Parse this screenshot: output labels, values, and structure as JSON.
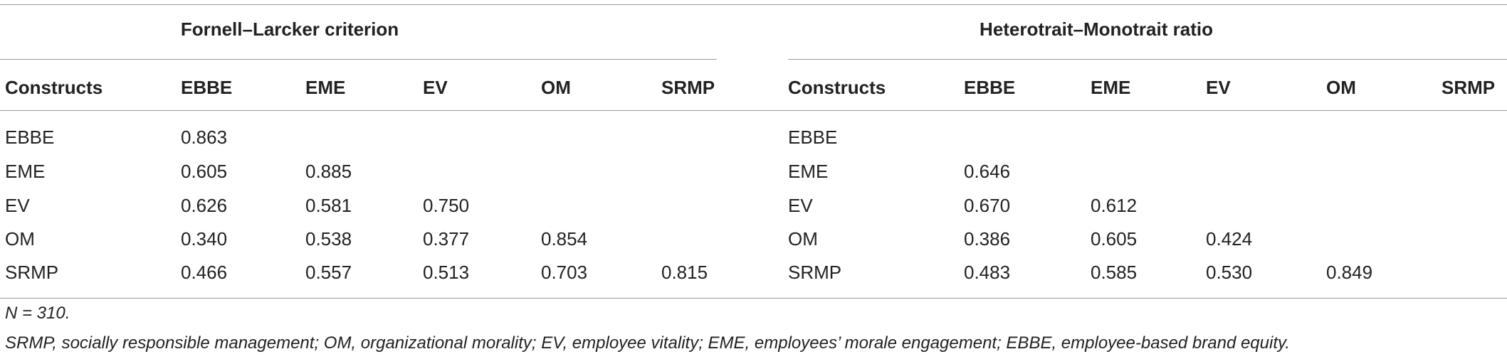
{
  "tables": [
    {
      "title": "Fornell–Larcker criterion",
      "columns": [
        "Constructs",
        "EBBE",
        "EME",
        "EV",
        "OM",
        "SRMP"
      ],
      "rows": [
        [
          "EBBE",
          "0.863"
        ],
        [
          "EME",
          "0.605",
          "0.885"
        ],
        [
          "EV",
          "0.626",
          "0.581",
          "0.750"
        ],
        [
          "OM",
          "0.340",
          "0.538",
          "0.377",
          "0.854"
        ],
        [
          "SRMP",
          "0.466",
          "0.557",
          "0.513",
          "0.703",
          "0.815"
        ]
      ]
    },
    {
      "title": "Heterotrait–Monotrait ratio",
      "columns": [
        "Constructs",
        "EBBE",
        "EME",
        "EV",
        "OM",
        "SRMP"
      ],
      "rows": [
        [
          "EBBE"
        ],
        [
          "EME",
          "0.646"
        ],
        [
          "EV",
          "0.670",
          "0.612"
        ],
        [
          "OM",
          "0.386",
          "0.605",
          "0.424"
        ],
        [
          "SRMP",
          "0.483",
          "0.585",
          "0.530",
          "0.849"
        ]
      ]
    }
  ],
  "notes": [
    "N = 310.",
    "SRMP, socially responsible management; OM, organizational morality; EV, employee vitality; EME, employees’ morale engagement; EBBE, employee-based brand equity."
  ]
}
